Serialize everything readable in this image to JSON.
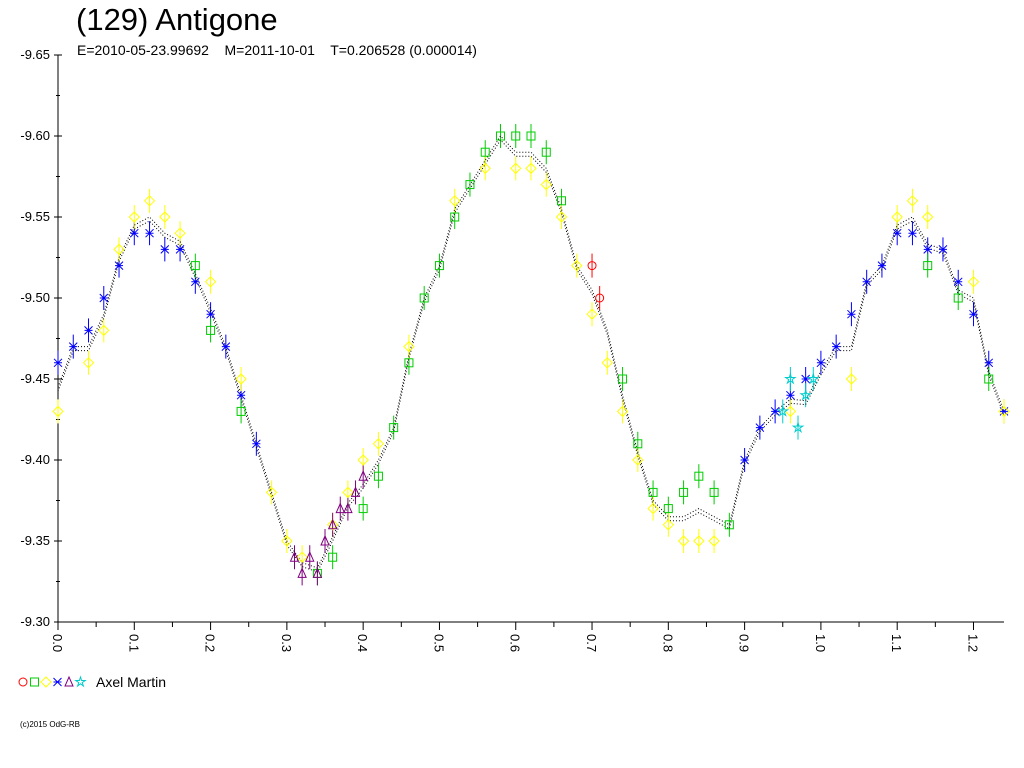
{
  "title": "(129) Antigone",
  "subtitle": "E=2010-05-23.99692    M=2011-10-01    T=0.206528 (0.000014)",
  "legend": {
    "name": "Axel Martin",
    "markers": [
      {
        "shape": "circle",
        "color": "#ff0000"
      },
      {
        "shape": "square",
        "color": "#00cc00"
      },
      {
        "shape": "diamond",
        "color": "#ffff00"
      },
      {
        "shape": "star4",
        "color": "#0000ff"
      },
      {
        "shape": "triangle",
        "color": "#800080"
      },
      {
        "shape": "star5",
        "color": "#00cccc"
      }
    ]
  },
  "copyright": "(c)2015 OdG-RB",
  "chart_data": {
    "type": "scatter",
    "title": "(129) Antigone",
    "xlabel": "",
    "ylabel": "",
    "xlim": [
      0.0,
      1.24
    ],
    "ylim": [
      -9.3,
      -9.65
    ],
    "y_inverted": true,
    "x_ticks": [
      "0.0",
      "0.1",
      "0.2",
      "0.3",
      "0.4",
      "0.5",
      "0.6",
      "0.7",
      "0.8",
      "0.9",
      "1.0",
      "1.1",
      "1.2"
    ],
    "y_ticks": [
      "-9.65",
      "-9.60",
      "-9.55",
      "-9.50",
      "-9.45",
      "-9.40",
      "-9.35",
      "-9.30"
    ],
    "grid": false,
    "series": [
      {
        "marker": "star4",
        "color": "#0000ff",
        "points": [
          [
            0.0,
            -9.46
          ],
          [
            0.02,
            -9.47
          ],
          [
            0.04,
            -9.48
          ],
          [
            0.06,
            -9.5
          ],
          [
            0.08,
            -9.52
          ],
          [
            0.1,
            -9.54
          ],
          [
            0.12,
            -9.54
          ],
          [
            0.14,
            -9.53
          ],
          [
            0.16,
            -9.53
          ],
          [
            0.18,
            -9.51
          ],
          [
            0.2,
            -9.49
          ],
          [
            0.22,
            -9.47
          ],
          [
            0.24,
            -9.44
          ],
          [
            0.26,
            -9.41
          ],
          [
            0.9,
            -9.4
          ],
          [
            0.92,
            -9.42
          ],
          [
            0.94,
            -9.43
          ],
          [
            0.96,
            -9.44
          ],
          [
            0.98,
            -9.45
          ],
          [
            1.0,
            -9.46
          ],
          [
            1.02,
            -9.47
          ],
          [
            1.04,
            -9.49
          ],
          [
            1.06,
            -9.51
          ],
          [
            1.08,
            -9.52
          ],
          [
            1.1,
            -9.54
          ],
          [
            1.12,
            -9.54
          ],
          [
            1.14,
            -9.53
          ],
          [
            1.16,
            -9.53
          ],
          [
            1.18,
            -9.51
          ],
          [
            1.2,
            -9.49
          ],
          [
            1.22,
            -9.46
          ],
          [
            1.24,
            -9.43
          ]
        ]
      },
      {
        "marker": "square",
        "color": "#00cc00",
        "points": [
          [
            0.18,
            -9.52
          ],
          [
            0.2,
            -9.48
          ],
          [
            0.24,
            -9.43
          ],
          [
            0.34,
            -9.33
          ],
          [
            0.36,
            -9.34
          ],
          [
            0.4,
            -9.37
          ],
          [
            0.42,
            -9.39
          ],
          [
            0.44,
            -9.42
          ],
          [
            0.46,
            -9.46
          ],
          [
            0.48,
            -9.5
          ],
          [
            0.5,
            -9.52
          ],
          [
            0.52,
            -9.55
          ],
          [
            0.54,
            -9.57
          ],
          [
            0.56,
            -9.59
          ],
          [
            0.58,
            -9.6
          ],
          [
            0.6,
            -9.6
          ],
          [
            0.62,
            -9.6
          ],
          [
            0.64,
            -9.59
          ],
          [
            0.66,
            -9.56
          ],
          [
            0.74,
            -9.45
          ],
          [
            0.76,
            -9.41
          ],
          [
            0.78,
            -9.38
          ],
          [
            0.8,
            -9.37
          ],
          [
            0.82,
            -9.38
          ],
          [
            0.84,
            -9.39
          ],
          [
            0.86,
            -9.38
          ],
          [
            0.88,
            -9.36
          ],
          [
            1.14,
            -9.52
          ],
          [
            1.18,
            -9.5
          ],
          [
            1.22,
            -9.45
          ]
        ]
      },
      {
        "marker": "diamond",
        "color": "#ffff00",
        "points": [
          [
            0.0,
            -9.43
          ],
          [
            0.04,
            -9.46
          ],
          [
            0.06,
            -9.48
          ],
          [
            0.08,
            -9.53
          ],
          [
            0.1,
            -9.55
          ],
          [
            0.12,
            -9.56
          ],
          [
            0.14,
            -9.55
          ],
          [
            0.16,
            -9.54
          ],
          [
            0.2,
            -9.51
          ],
          [
            0.24,
            -9.45
          ],
          [
            0.28,
            -9.38
          ],
          [
            0.3,
            -9.35
          ],
          [
            0.32,
            -9.34
          ],
          [
            0.36,
            -9.36
          ],
          [
            0.38,
            -9.38
          ],
          [
            0.4,
            -9.4
          ],
          [
            0.42,
            -9.41
          ],
          [
            0.46,
            -9.47
          ],
          [
            0.52,
            -9.56
          ],
          [
            0.56,
            -9.58
          ],
          [
            0.6,
            -9.58
          ],
          [
            0.62,
            -9.58
          ],
          [
            0.64,
            -9.57
          ],
          [
            0.66,
            -9.55
          ],
          [
            0.68,
            -9.52
          ],
          [
            0.7,
            -9.49
          ],
          [
            0.72,
            -9.46
          ],
          [
            0.74,
            -9.43
          ],
          [
            0.76,
            -9.4
          ],
          [
            0.78,
            -9.37
          ],
          [
            0.8,
            -9.36
          ],
          [
            0.82,
            -9.35
          ],
          [
            0.84,
            -9.35
          ],
          [
            0.86,
            -9.35
          ],
          [
            0.96,
            -9.43
          ],
          [
            1.04,
            -9.45
          ],
          [
            1.1,
            -9.55
          ],
          [
            1.12,
            -9.56
          ],
          [
            1.14,
            -9.55
          ],
          [
            1.2,
            -9.51
          ],
          [
            1.24,
            -9.43
          ]
        ]
      },
      {
        "marker": "triangle",
        "color": "#800080",
        "points": [
          [
            0.31,
            -9.34
          ],
          [
            0.32,
            -9.33
          ],
          [
            0.33,
            -9.34
          ],
          [
            0.34,
            -9.33
          ],
          [
            0.35,
            -9.35
          ],
          [
            0.36,
            -9.36
          ],
          [
            0.37,
            -9.37
          ],
          [
            0.38,
            -9.37
          ],
          [
            0.39,
            -9.38
          ],
          [
            0.4,
            -9.39
          ]
        ]
      },
      {
        "marker": "circle",
        "color": "#ff0000",
        "points": [
          [
            0.7,
            -9.52
          ],
          [
            0.71,
            -9.5
          ]
        ]
      },
      {
        "marker": "star5",
        "color": "#00cccc",
        "points": [
          [
            0.95,
            -9.43
          ],
          [
            0.96,
            -9.45
          ],
          [
            0.97,
            -9.42
          ],
          [
            0.98,
            -9.44
          ],
          [
            0.99,
            -9.45
          ]
        ]
      }
    ]
  }
}
